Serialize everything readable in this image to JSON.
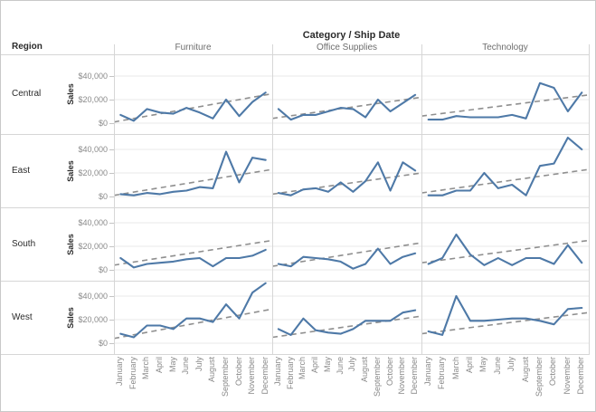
{
  "title": "Category / Ship Date",
  "region_header": "Region",
  "columns": [
    "Furniture",
    "Office Supplies",
    "Technology"
  ],
  "regions": [
    "Central",
    "East",
    "South",
    "West"
  ],
  "y_axis": {
    "title": "Sales",
    "tick_labels": [
      "$0",
      "$20,000",
      "$40,000"
    ],
    "tick_values": [
      0,
      20000,
      40000
    ]
  },
  "months": [
    "January",
    "February",
    "March",
    "April",
    "May",
    "June",
    "July",
    "August",
    "September",
    "October",
    "November",
    "December"
  ],
  "colors": {
    "line": "#4e79a7",
    "trend": "#8f8f8f",
    "gridline": "#e8e8e8",
    "border": "#d6d6d6",
    "text_dark": "#2b2b2b",
    "text_gray": "#8a8a8a",
    "header_gray": "#6e6e6e"
  },
  "chart_data": {
    "type": "line",
    "title": "Category / Ship Date",
    "ylabel": "Sales",
    "ylim": [
      0,
      52000
    ],
    "grid": "horizontal",
    "categories": [
      "January",
      "February",
      "March",
      "April",
      "May",
      "June",
      "July",
      "August",
      "September",
      "October",
      "November",
      "December"
    ],
    "panels": [
      {
        "region": "Central",
        "category": "Furniture",
        "values": [
          7000,
          2000,
          12000,
          9000,
          8000,
          13000,
          9000,
          4000,
          20000,
          6000,
          18000,
          26000
        ],
        "trend_start": 1000,
        "trend_end": 25000
      },
      {
        "region": "Central",
        "category": "Office Supplies",
        "values": [
          12000,
          3000,
          7000,
          7000,
          10000,
          13000,
          12000,
          5000,
          20000,
          10000,
          17000,
          24000
        ],
        "trend_start": 4000,
        "trend_end": 22000
      },
      {
        "region": "Central",
        "category": "Technology",
        "values": [
          3000,
          3000,
          6000,
          5000,
          5000,
          5000,
          7000,
          4000,
          34000,
          30000,
          10000,
          26000
        ],
        "trend_start": 6000,
        "trend_end": 24000
      },
      {
        "region": "East",
        "category": "Furniture",
        "values": [
          2000,
          1000,
          3000,
          2000,
          4000,
          5000,
          8000,
          7000,
          38000,
          12000,
          33000,
          31000
        ],
        "trend_start": 1000,
        "trend_end": 23000
      },
      {
        "region": "East",
        "category": "Office Supplies",
        "values": [
          3000,
          1000,
          6000,
          7000,
          4000,
          12000,
          4000,
          13000,
          29000,
          5000,
          29000,
          22000
        ],
        "trend_start": 2000,
        "trend_end": 20000
      },
      {
        "region": "East",
        "category": "Technology",
        "values": [
          1000,
          1000,
          5000,
          5000,
          20000,
          7000,
          10000,
          1000,
          26000,
          28000,
          50000,
          40000
        ],
        "trend_start": 3000,
        "trend_end": 23000
      },
      {
        "region": "South",
        "category": "Furniture",
        "values": [
          10000,
          2000,
          5000,
          6000,
          7000,
          9000,
          10000,
          3000,
          10000,
          10000,
          12000,
          17000
        ],
        "trend_start": 4000,
        "trend_end": 25000
      },
      {
        "region": "South",
        "category": "Office Supplies",
        "values": [
          5000,
          3000,
          11000,
          10000,
          9000,
          7000,
          1000,
          5000,
          18000,
          5000,
          11000,
          14000
        ],
        "trend_start": 3000,
        "trend_end": 23000
      },
      {
        "region": "South",
        "category": "Technology",
        "values": [
          5000,
          10000,
          30000,
          13000,
          4000,
          10000,
          4000,
          10000,
          10000,
          5000,
          21000,
          6000
        ],
        "trend_start": 6000,
        "trend_end": 25000
      },
      {
        "region": "West",
        "category": "Furniture",
        "values": [
          8000,
          5000,
          15000,
          15000,
          12000,
          21000,
          21000,
          18000,
          33000,
          21000,
          43000,
          51000
        ],
        "trend_start": 4000,
        "trend_end": 29000
      },
      {
        "region": "West",
        "category": "Office Supplies",
        "values": [
          12000,
          7000,
          21000,
          11000,
          9000,
          8000,
          12000,
          19000,
          19000,
          19000,
          26000,
          28000
        ],
        "trend_start": 5000,
        "trend_end": 23000
      },
      {
        "region": "West",
        "category": "Technology",
        "values": [
          10000,
          7000,
          40000,
          19000,
          19000,
          20000,
          21000,
          21000,
          19000,
          16000,
          29000,
          30000
        ],
        "trend_start": 8000,
        "trend_end": 26000
      }
    ]
  }
}
